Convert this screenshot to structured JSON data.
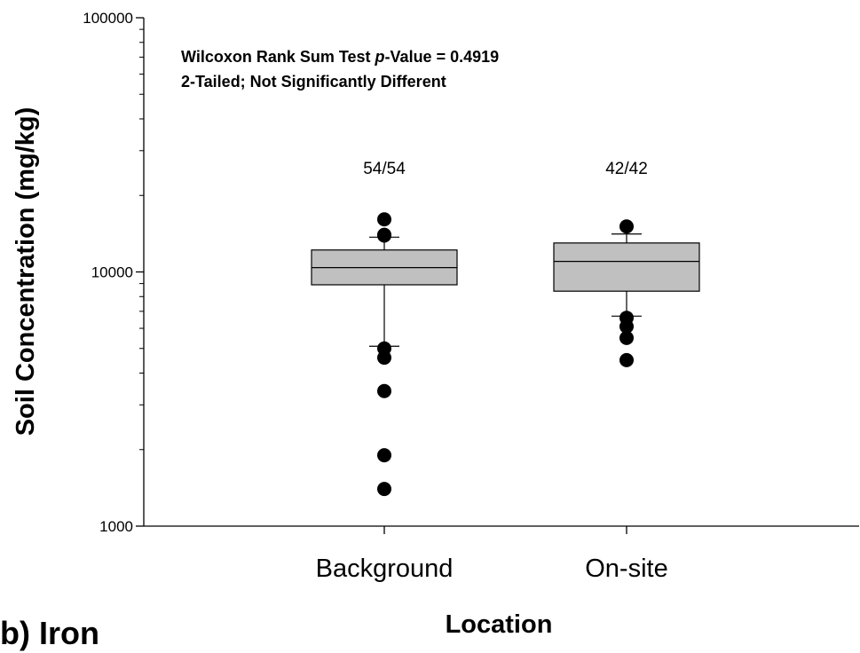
{
  "chart_data": {
    "type": "box",
    "panel_label": "b) Iron",
    "xlabel": "Location",
    "ylabel": "Soil Concentration (mg/kg)",
    "yscale": "log",
    "ylim": [
      1000,
      100000
    ],
    "yticks": [
      {
        "value": 1000,
        "label": "1000"
      },
      {
        "value": 10000,
        "label": "10000"
      },
      {
        "value": 100000,
        "label": "100000"
      }
    ],
    "annotation": {
      "line1_prefix": "Wilcoxon Rank Sum Test ",
      "line1_italic": "p",
      "line1_suffix": "-Value = 0.4919",
      "line2": "2-Tailed; Not Significantly Different"
    },
    "boxes": [
      {
        "category": "Background",
        "count_label": "54/54",
        "q1": 8900,
        "median": 10400,
        "q3": 12200,
        "whisker_low": 5100,
        "whisker_high": 13700,
        "outliers": [
          16100,
          14000,
          13900,
          5000,
          4600,
          3400,
          1900,
          1400
        ]
      },
      {
        "category": "On-site",
        "count_label": "42/42",
        "q1": 8400,
        "median": 11000,
        "q3": 13000,
        "whisker_low": 6700,
        "whisker_high": 14100,
        "outliers": [
          15100,
          6600,
          6100,
          5500,
          4500
        ]
      }
    ]
  }
}
